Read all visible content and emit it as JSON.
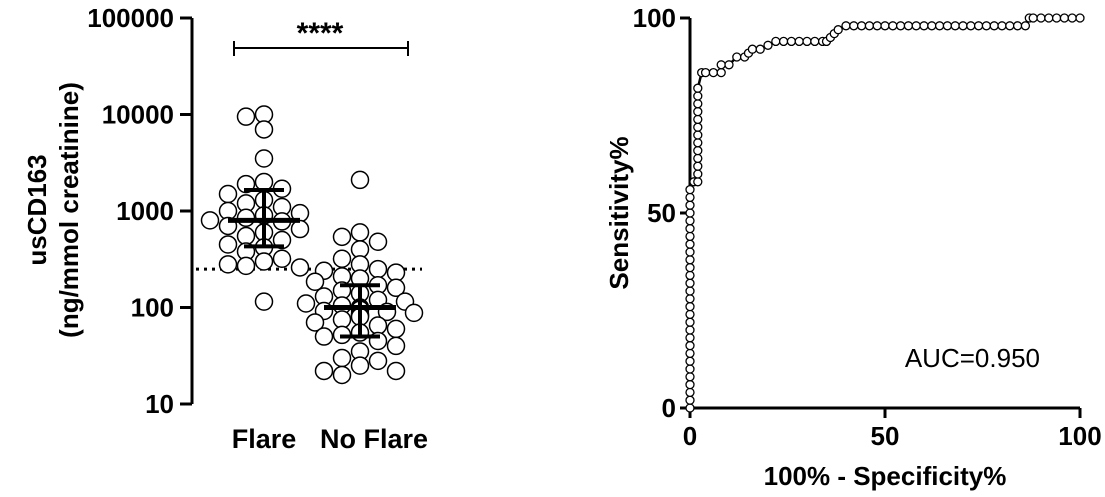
{
  "chart_data": [
    {
      "type": "scatter",
      "subtype": "dot-plot-with-median-iqr",
      "ylabel_line1": "usCD163",
      "ylabel_line2": "(ng/mmol creatinine)",
      "yscale": "log",
      "ylim": [
        10,
        100000
      ],
      "yticks": [
        "10",
        "100",
        "1000",
        "10000",
        "100000"
      ],
      "ytick_values": [
        10,
        100,
        1000,
        10000,
        100000
      ],
      "categories": [
        "Flare",
        "No Flare"
      ],
      "significance": "****",
      "cutoff_line": 250,
      "groups": [
        {
          "name": "Flare",
          "median": 800,
          "q1": 430,
          "q3": 1650,
          "values": [
            10000,
            9500,
            7000,
            3500,
            2000,
            1900,
            1700,
            1500,
            1300,
            1200,
            1100,
            1000,
            950,
            900,
            850,
            800,
            780,
            700,
            650,
            600,
            550,
            500,
            450,
            420,
            380,
            320,
            300,
            280,
            270,
            260,
            115
          ]
        },
        {
          "name": "No Flare",
          "median": 100,
          "q1": 50,
          "q3": 170,
          "values": [
            2100,
            600,
            540,
            480,
            400,
            320,
            280,
            250,
            240,
            230,
            210,
            200,
            185,
            170,
            160,
            150,
            140,
            130,
            120,
            115,
            110,
            105,
            100,
            98,
            95,
            92,
            90,
            88,
            85,
            82,
            80,
            75,
            70,
            65,
            60,
            55,
            52,
            50,
            45,
            40,
            35,
            30,
            28,
            25,
            22,
            22,
            20
          ]
        }
      ]
    },
    {
      "type": "line",
      "subtype": "roc-curve",
      "xlabel": "100% - Specificity%",
      "ylabel": "Sensitivity%",
      "xlim": [
        0,
        100
      ],
      "ylim": [
        0,
        100
      ],
      "xticks": [
        "0",
        "50",
        "100"
      ],
      "yticks": [
        "0",
        "50",
        "100"
      ],
      "annotation": "AUC=0.950",
      "x": [
        0,
        0,
        0,
        0,
        0,
        0,
        0,
        0,
        0,
        0,
        0,
        0,
        0,
        0,
        0,
        0,
        0,
        0,
        0,
        0,
        0,
        0,
        0,
        0,
        0,
        0,
        0,
        0,
        0,
        1,
        2,
        2,
        2,
        2,
        2,
        2,
        2,
        2,
        2,
        2,
        2,
        2,
        2,
        3,
        4,
        6,
        8,
        8,
        10,
        12,
        14,
        15,
        16,
        18,
        20,
        22,
        24,
        26,
        28,
        30,
        32,
        34,
        35,
        36,
        37,
        38,
        40,
        42,
        44,
        46,
        48,
        50,
        52,
        54,
        56,
        58,
        60,
        62,
        64,
        66,
        68,
        70,
        72,
        74,
        76,
        78,
        80,
        82,
        84,
        86,
        87,
        88,
        90,
        92,
        94,
        96,
        98,
        100
      ],
      "y": [
        0,
        2,
        4,
        6,
        8,
        10,
        12,
        14,
        16,
        18,
        20,
        22,
        24,
        26,
        28,
        30,
        32,
        34,
        36,
        38,
        40,
        42,
        44,
        46,
        48,
        50,
        52,
        54,
        56,
        58,
        58,
        60,
        62,
        64,
        66,
        68,
        70,
        72,
        74,
        76,
        78,
        80,
        82,
        86,
        86,
        86,
        86,
        88,
        88,
        90,
        90,
        91,
        92,
        92,
        93,
        94,
        94,
        94,
        94,
        94,
        94,
        94,
        94,
        95,
        96,
        97,
        98,
        98,
        98,
        98,
        98,
        98,
        98,
        98,
        98,
        98,
        98,
        98,
        98,
        98,
        98,
        98,
        98,
        98,
        98,
        98,
        98,
        98,
        98,
        98,
        100,
        100,
        100,
        100,
        100,
        100,
        100,
        100
      ]
    }
  ]
}
